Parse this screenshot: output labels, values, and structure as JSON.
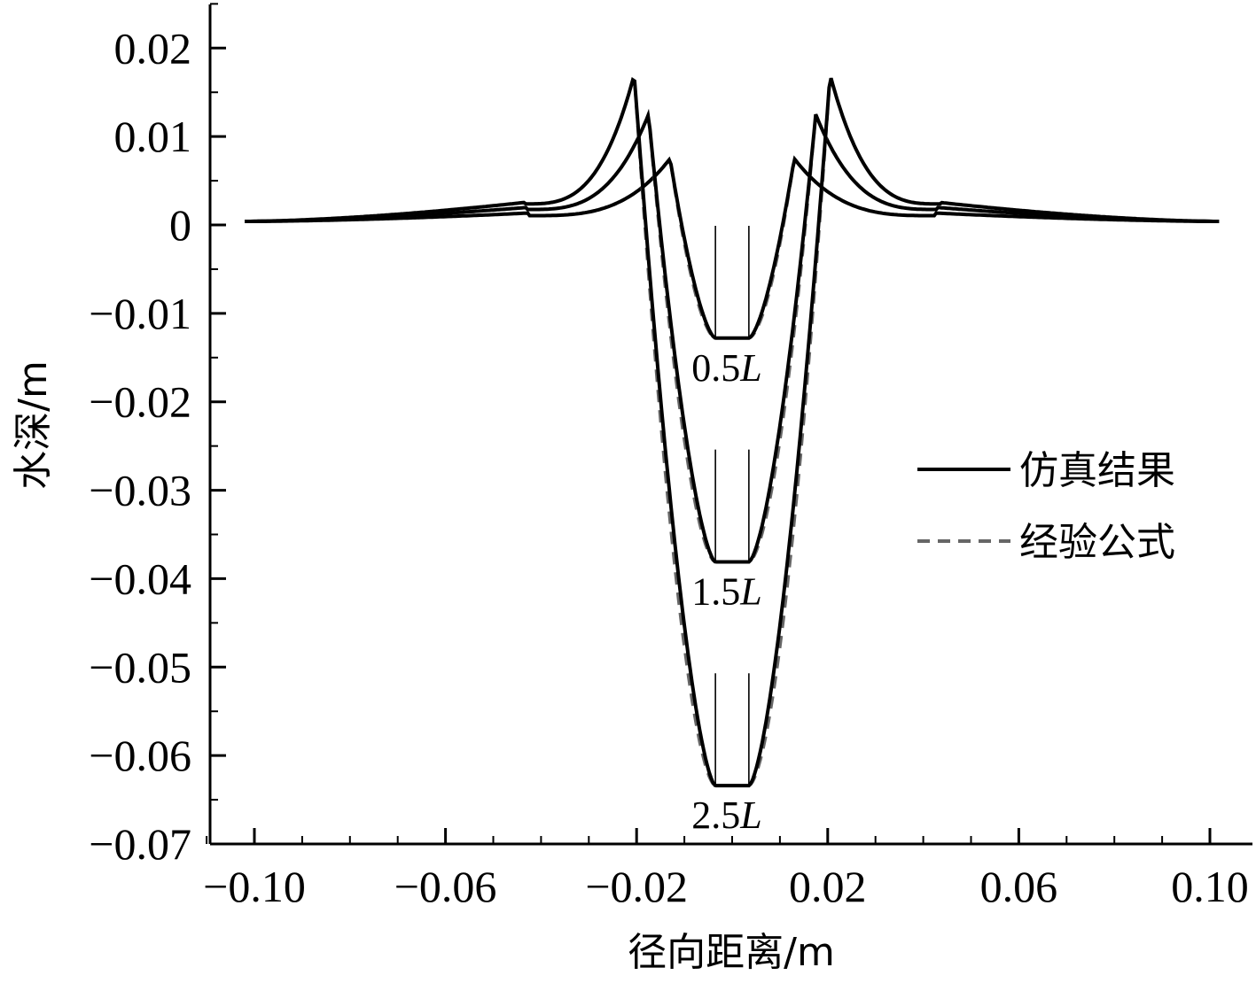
{
  "chart_data": {
    "type": "line",
    "xlabel": "径向距离/m",
    "ylabel": "水深/m",
    "xlim": [
      -0.11,
      0.115
    ],
    "ylim": [
      -0.07,
      0.025
    ],
    "x_ticks": [
      "−0.10",
      "−0.06",
      "−0.02",
      "0.02",
      "0.06",
      "0.10"
    ],
    "x_tick_values": [
      -0.1,
      -0.06,
      -0.02,
      0.02,
      0.06,
      0.1
    ],
    "y_ticks": [
      "0.02",
      "0.01",
      "0",
      "−0.01",
      "−0.02",
      "−0.03",
      "−0.04",
      "−0.05",
      "−0.06",
      "−0.07"
    ],
    "y_tick_values": [
      0.02,
      0.01,
      0,
      -0.01,
      -0.02,
      -0.03,
      -0.04,
      -0.05,
      -0.06,
      -0.07
    ],
    "legend": {
      "position": "right",
      "entries": [
        {
          "label": "仿真结果",
          "style": "solid",
          "color": "#000000"
        },
        {
          "label": "经验公式",
          "style": "dashed",
          "color": "#666666"
        }
      ]
    },
    "curves": [
      {
        "label": "0.5L",
        "label_number": "0.5",
        "label_letter": "L",
        "bottom_depth": -0.0128,
        "bottom_half_width": 0.0035,
        "peak_height": 0.0075,
        "peak_x": 0.013,
        "rim_x": 0.0425
      },
      {
        "label": "1.5L",
        "label_number": "1.5",
        "label_letter": "L",
        "bottom_depth": -0.0381,
        "bottom_half_width": 0.0035,
        "peak_height": 0.0125,
        "peak_x": 0.0175,
        "rim_x": 0.043
      },
      {
        "label": "2.5L",
        "label_number": "2.5",
        "label_letter": "L",
        "bottom_depth": -0.0634,
        "bottom_half_width": 0.0035,
        "peak_height": 0.017,
        "peak_x": 0.0205,
        "rim_x": 0.0435
      }
    ],
    "series": [
      {
        "name": "仿真结果",
        "style": "solid"
      },
      {
        "name": "经验公式",
        "style": "dashed"
      }
    ],
    "grid": false
  }
}
